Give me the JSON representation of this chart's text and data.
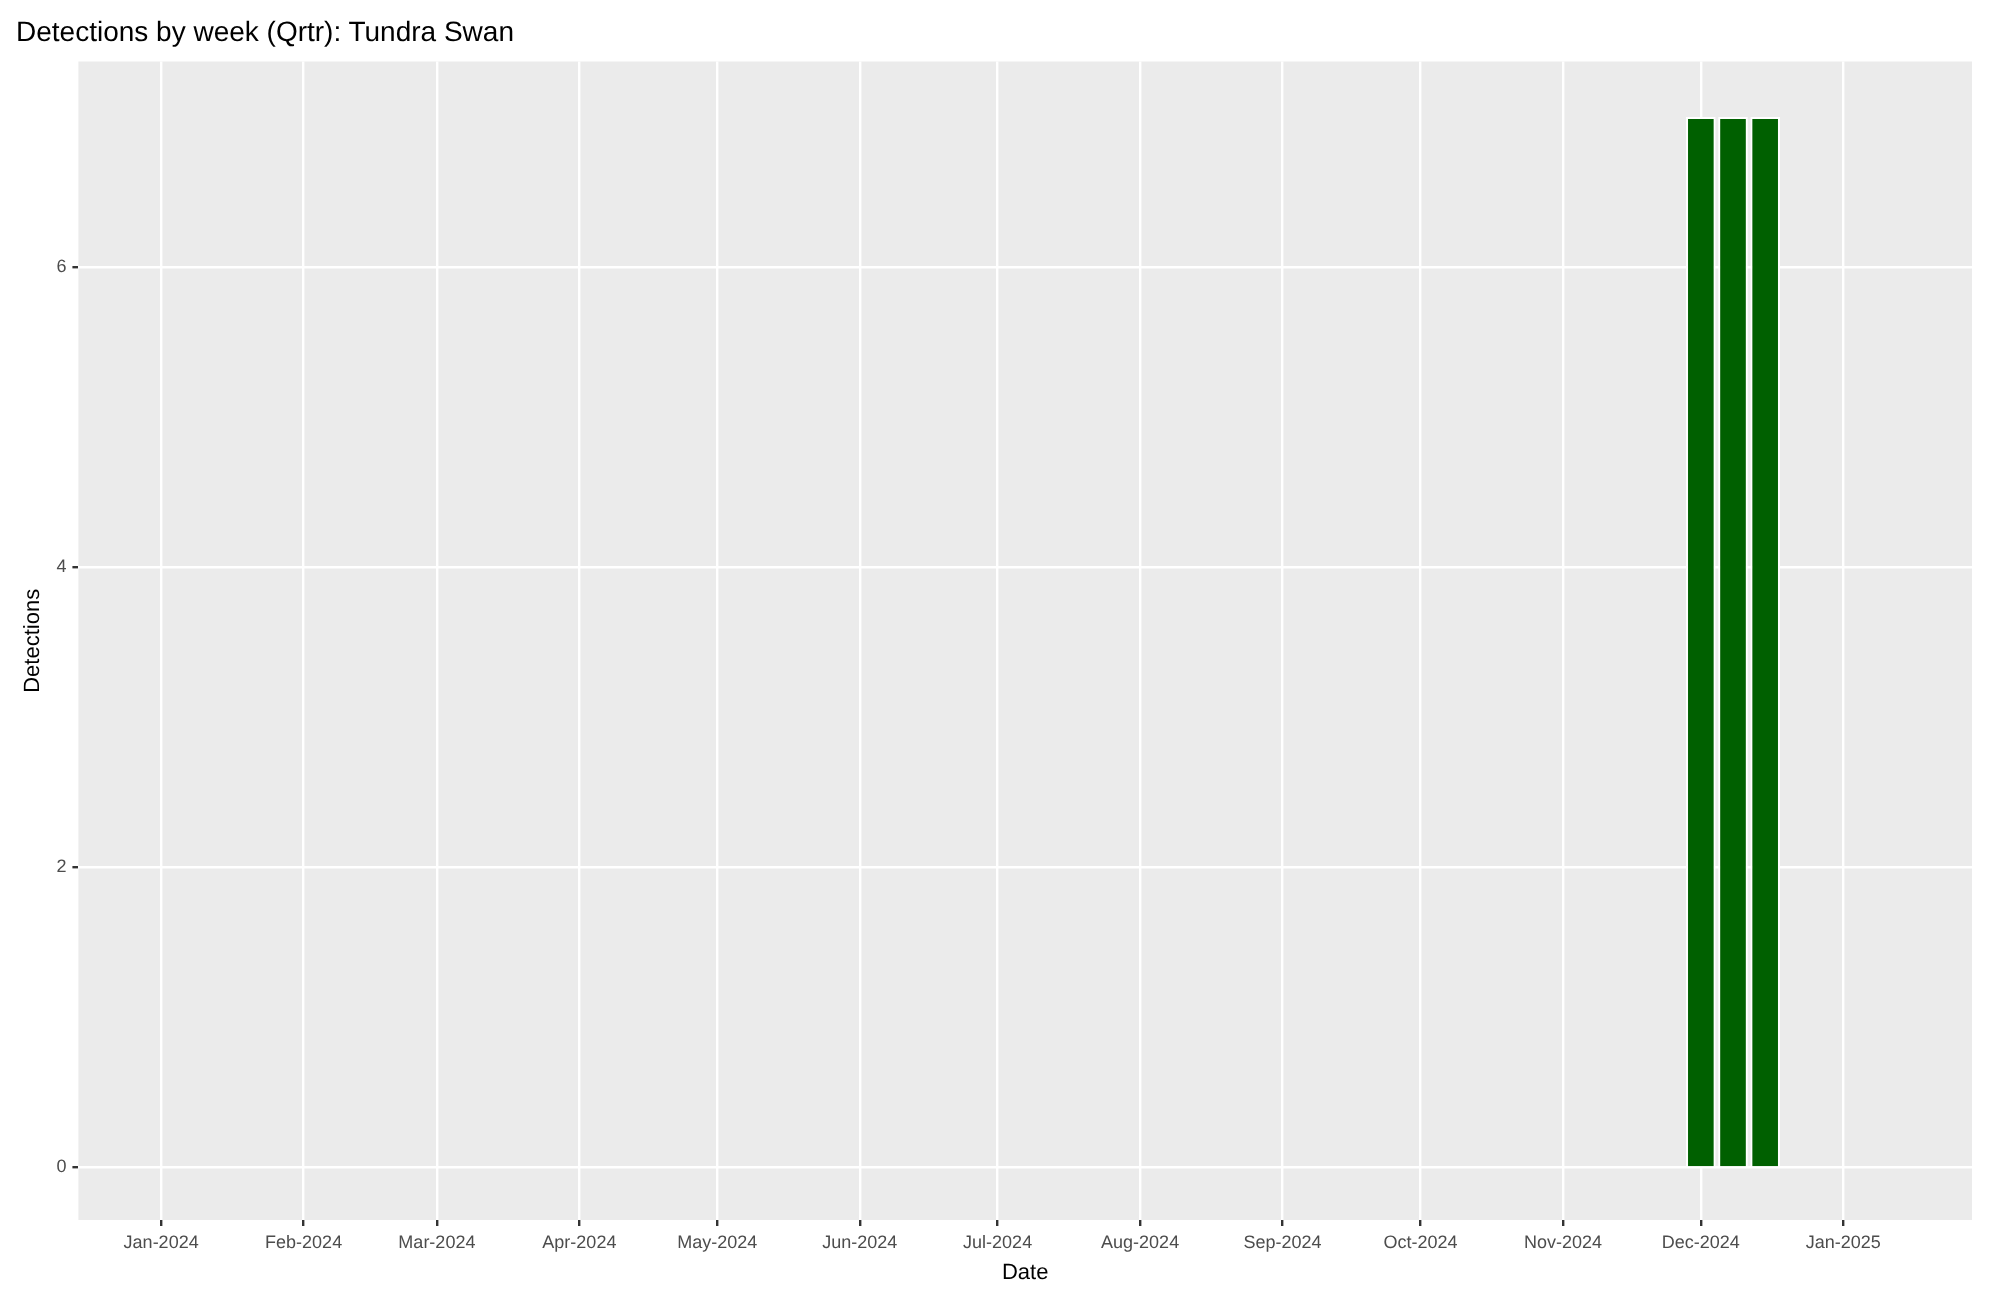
{
  "chart_data": {
    "type": "bar",
    "title": "Detections by week (Qrtr): Tundra Swan",
    "xlabel": "Date",
    "ylabel": "Detections",
    "x": [
      "2024-12-01",
      "2024-12-08",
      "2024-12-15"
    ],
    "values": [
      7,
      7,
      7
    ],
    "color": "#006000",
    "xlim": [
      "2023-12-14",
      "2025-01-29"
    ],
    "xticks": [
      {
        "value": "2024-01-01",
        "label": "Jan-2024"
      },
      {
        "value": "2024-02-01",
        "label": "Feb-2024"
      },
      {
        "value": "2024-03-01",
        "label": "Mar-2024"
      },
      {
        "value": "2024-04-01",
        "label": "Apr-2024"
      },
      {
        "value": "2024-05-01",
        "label": "May-2024"
      },
      {
        "value": "2024-06-01",
        "label": "Jun-2024"
      },
      {
        "value": "2024-07-01",
        "label": "Jul-2024"
      },
      {
        "value": "2024-08-01",
        "label": "Aug-2024"
      },
      {
        "value": "2024-09-01",
        "label": "Sep-2024"
      },
      {
        "value": "2024-10-01",
        "label": "Oct-2024"
      },
      {
        "value": "2024-11-01",
        "label": "Nov-2024"
      },
      {
        "value": "2024-12-01",
        "label": "Dec-2024"
      },
      {
        "value": "2025-01-01",
        "label": "Jan-2025"
      }
    ],
    "ylim": [
      -0.35,
      7.37
    ],
    "yticks": [
      0,
      2,
      4,
      6
    ],
    "grid": true
  }
}
